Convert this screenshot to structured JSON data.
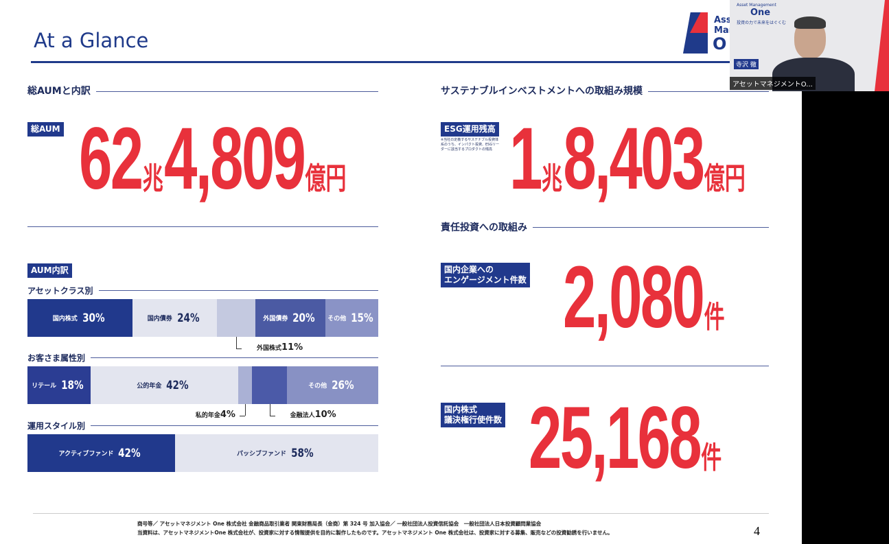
{
  "header": {
    "title": "At a Glance"
  },
  "logo": {
    "line1": "Ass",
    "line2": "Mar",
    "line3": "O"
  },
  "video": {
    "brand_small": "Asset Management",
    "brand": "One",
    "tagline": "投資の力で未来をはぐくむ",
    "speaker": "寺沢 徹",
    "caption": "アセットマネジメントO..."
  },
  "aum": {
    "heading": "総AUMと内訳",
    "badge": "総AUM",
    "amount": {
      "trillion": "62",
      "trillion_unit": "兆",
      "hundred_million": "4,809",
      "unit": "億円"
    }
  },
  "breakdown": {
    "badge": "AUM内訳",
    "groups": [
      {
        "heading": "アセットクラス別",
        "segments": [
          {
            "label": "国内株式",
            "value": 30,
            "value_label": "30%",
            "color": "#21398c"
          },
          {
            "label": "国内債券",
            "value": 24,
            "value_label": "24%",
            "color": "#e3e5ef"
          },
          {
            "label": "外国株式",
            "value": 11,
            "value_label": "11%",
            "color": "#c4c9e0"
          },
          {
            "label": "外国債券",
            "value": 20,
            "value_label": "20%",
            "color": "#4b5aa3"
          },
          {
            "label": "その他",
            "value": 15,
            "value_label": "15%",
            "color": "#8a93c6"
          }
        ]
      },
      {
        "heading": "お客さま属性別",
        "segments": [
          {
            "label": "リテール",
            "value": 18,
            "value_label": "18%",
            "color": "#2b3d93"
          },
          {
            "label": "公的年金",
            "value": 42,
            "value_label": "42%",
            "color": "#e3e5ef"
          },
          {
            "label": "私的年金",
            "value": 4,
            "value_label": "4%",
            "color": "#aab1d5"
          },
          {
            "label": "金融法人",
            "value": 10,
            "value_label": "10%",
            "color": "#4b5aa8"
          },
          {
            "label": "その他",
            "value": 26,
            "value_label": "26%",
            "color": "#8891c4"
          }
        ]
      },
      {
        "heading": "運用スタイル別",
        "segments": [
          {
            "label": "アクティブファンド",
            "value": 42,
            "value_label": "42%",
            "color": "#21398c"
          },
          {
            "label": "パッシブファンド",
            "value": 58,
            "value_label": "58%",
            "color": "#e3e5ef"
          }
        ]
      }
    ]
  },
  "sustainable": {
    "heading": "サステナブルインベストメントへの取組み規模",
    "badge": "ESG運用残高",
    "note": "※当社の定義するサステナブル投資体系のうち、インパクト投資、ESGリーダーに該当するプロダクトの残高",
    "amount": {
      "trillion": "1",
      "trillion_unit": "兆",
      "hundred_million": "8,403",
      "unit": "億円"
    }
  },
  "responsible": {
    "heading": "責任投資への取組み",
    "engagement": {
      "badge_line1": "国内企業への",
      "badge_line2": "エンゲージメント件数",
      "amount": "2,080",
      "unit": "件"
    },
    "voting": {
      "badge_line1": "国内株式",
      "badge_line2": "議決権行使件数",
      "amount": "25,168",
      "unit": "件"
    }
  },
  "footer": {
    "line1": "商号等／ アセットマネジメント One 株式会社 金融商品取引業者 関東財務局長（金商）第 324 号 加入協会／ 一般社団法人投資信託協会　一般社団法人日本投資顧問業協会",
    "line2": "当資料は、アセットマネジメントOne 株式会社が、投資家に対する情報提供を目的に製作したものです。アセットマネジメント One 株式会社は、投資家に対する募集、販売などの投資勧誘を行いません。",
    "page": "4"
  }
}
